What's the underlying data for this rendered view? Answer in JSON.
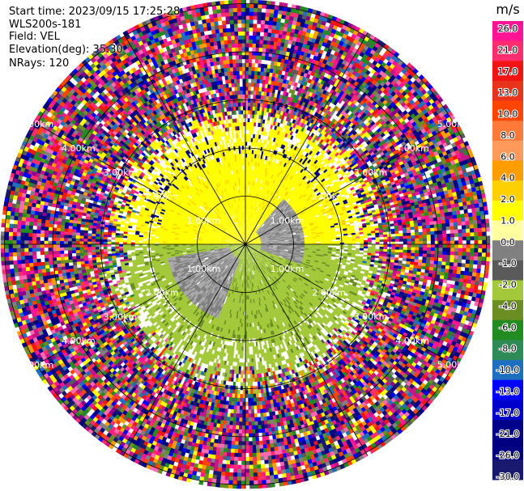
{
  "info": {
    "start_time": "Start time: 2023/09/15 17:25:28",
    "instrument": "WLS200s-181",
    "field": "Field: VEL",
    "elevation": "Elevation(deg): 35.30",
    "nrays": "NRays: 120"
  },
  "chart_data": {
    "type": "heatmap",
    "projection": "polar PPI",
    "field": "VEL",
    "units": "m/s",
    "nrays": 120,
    "range_rings_km": [
      1.0,
      2.0,
      3.0,
      4.0,
      5.0
    ],
    "ring_labels": {
      "1": [
        "1.00km",
        "1.00km",
        "1.00km",
        "1.00km"
      ],
      "2": [
        "2.00km",
        "2.00km",
        "2.00km",
        "2.00km"
      ],
      "3": [
        "3.00km",
        "3.00km",
        "3.00km",
        "3.00km"
      ],
      "4": [
        "4.00km",
        "4.00km",
        "4.00km",
        "4.00km"
      ],
      "5": [
        "5.00km",
        "5.00km",
        "5.00km",
        "5.00km"
      ]
    },
    "radial_spokes_deg": [
      0,
      30,
      60,
      90,
      120,
      150,
      180,
      210,
      240,
      270,
      300,
      330
    ],
    "regions": [
      {
        "description": "receding",
        "range_km": [
          0,
          2.2
        ],
        "azimuth_deg": [
          290,
          70
        ],
        "value_ms": 2.0
      },
      {
        "description": "approaching",
        "range_km": [
          0,
          2.4
        ],
        "azimuth_deg": [
          100,
          260
        ],
        "value_ms": -3.0
      },
      {
        "description": "near zero",
        "range_km": [
          0.3,
          1.2
        ],
        "azimuth_deg": [
          40,
          110
        ],
        "value_ms": 0.0
      },
      {
        "description": "near zero",
        "range_km": [
          0.3,
          1.6
        ],
        "azimuth_deg": [
          200,
          260
        ],
        "value_ms": 0.0
      },
      {
        "description": "noise",
        "range_km": [
          2.5,
          5.2
        ],
        "azimuth_deg": [
          0,
          360
        ],
        "value_ms": "random"
      }
    ],
    "colorbar": {
      "title": "m/s",
      "ticks": [
        "26.0",
        "21.0",
        "17.0",
        "13.0",
        "10.0",
        "8.0",
        "6.0",
        "4.0",
        "2.0",
        "1.0",
        "0.0",
        "-1.0",
        "-2.0",
        "-4.0",
        "-6.0",
        "-8.0",
        "-10.0",
        "-13.0",
        "-17.0",
        "-21.0",
        "-26.0",
        "-30.0"
      ],
      "colors": [
        "#ff1493",
        "#ff2d6e",
        "#f01414",
        "#e8341c",
        "#ff4500",
        "#ff7a38",
        "#ff9a5a",
        "#ff9c00",
        "#ffd000",
        "#ffff00",
        "#ffffa0",
        "#808080",
        "#5a5a5a",
        "#a3c93a",
        "#6b8e23",
        "#228b22",
        "#2e8b57",
        "#1e6fbf",
        "#0000ff",
        "#0000cd",
        "#00008b",
        "#000080",
        "#191970"
      ]
    }
  }
}
